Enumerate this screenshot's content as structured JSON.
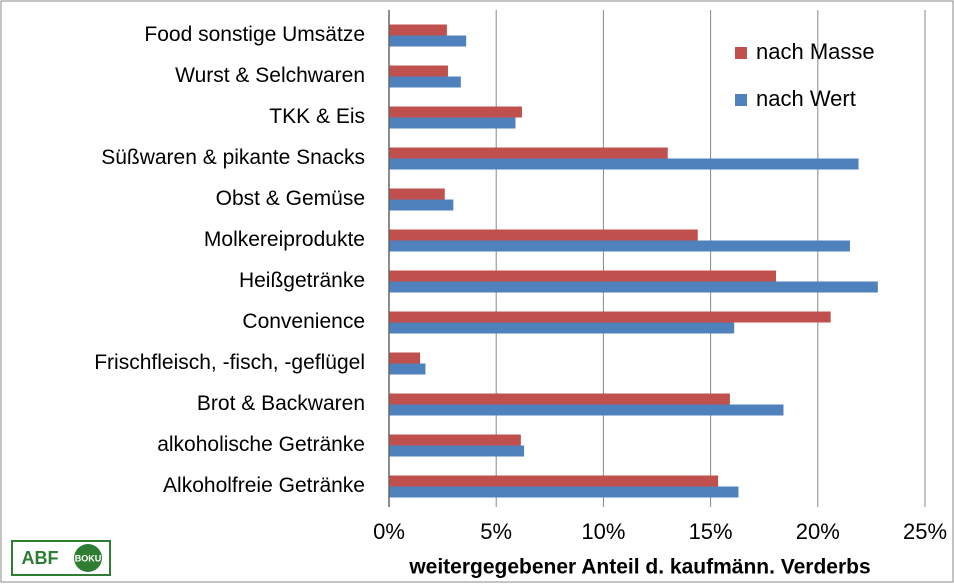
{
  "chart_data": {
    "type": "bar",
    "orientation": "horizontal",
    "categories": [
      "Food sonstige Umsätze",
      "Wurst & Selchwaren",
      "TKK & Eis",
      "Süßwaren & pikante Snacks",
      "Obst & Gemüse",
      "Molkereiprodukte",
      "Heißgetränke",
      "Convenience",
      "Frischfleisch, -fisch, -geflügel",
      "Brot & Backwaren",
      "alkoholische Getränke",
      "Alkoholfreie Getränke"
    ],
    "series": [
      {
        "name": "nach Masse",
        "color": "#c0504d",
        "values": [
          2.7,
          2.75,
          6.2,
          13.0,
          2.6,
          14.4,
          18.05,
          20.6,
          1.45,
          15.9,
          6.15,
          15.35
        ]
      },
      {
        "name": "nach Wert",
        "color": "#4f81bd",
        "values": [
          3.6,
          3.35,
          5.9,
          21.9,
          3.0,
          21.5,
          22.8,
          16.1,
          1.7,
          18.4,
          6.3,
          16.3
        ]
      }
    ],
    "xlim": [
      0,
      25
    ],
    "xticks": [
      {
        "value": 0,
        "label": "0%"
      },
      {
        "value": 5,
        "label": "5%"
      },
      {
        "value": 10,
        "label": "10%"
      },
      {
        "value": 15,
        "label": "15%"
      },
      {
        "value": 20,
        "label": "20%"
      },
      {
        "value": 25,
        "label": "25%"
      }
    ],
    "xlabel": "weitergegebener Anteil d. kaufmänn. Verderbs",
    "grid": true,
    "legend": "upper right"
  },
  "logo": {
    "left": "ABF",
    "right": "BOKU"
  }
}
